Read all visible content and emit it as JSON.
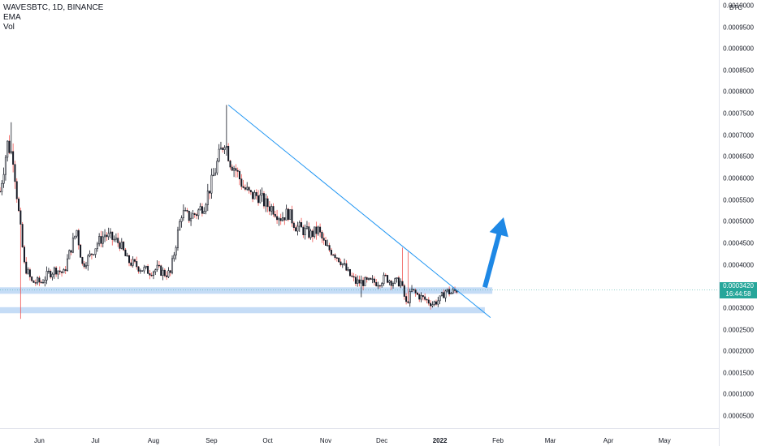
{
  "legend": {
    "symbol_line": "WAVESBTC, 1D, BINANCE",
    "ema_label": "EMA",
    "vol_label": "Vol"
  },
  "currency_label": "BTC",
  "price_label": {
    "price": "0.0003420",
    "countdown": "16:44:58"
  },
  "colors": {
    "up": "#26a69a",
    "down": "#ef5350",
    "candle_body": "#131722",
    "trendline": "#2196f3",
    "zone": "#bbd6f5",
    "arrow": "#1e88e5",
    "price_label_bg": "#26a69a"
  },
  "chart_data": {
    "type": "candlestick",
    "title": "WAVESBTC, 1D, BINANCE",
    "ylim": [
      2.2e-05,
      0.001013
    ],
    "y_ticks": [
      "0.0010000",
      "0.0009500",
      "0.0009000",
      "0.0008500",
      "0.0008000",
      "0.0007500",
      "0.0007000",
      "0.0006500",
      "0.0006000",
      "0.0005500",
      "0.0005000",
      "0.0004500",
      "0.0004000",
      "0.0003420",
      "0.0003000",
      "0.0002500",
      "0.0002000",
      "0.0001500",
      "0.0001000",
      "0.0000500"
    ],
    "y_tick_values": [
      0.001,
      0.00095,
      0.0009,
      0.00085,
      0.0008,
      0.00075,
      0.0007,
      0.00065,
      0.0006,
      0.00055,
      0.0005,
      0.00045,
      0.0004,
      0.000342,
      0.0003,
      0.00025,
      0.0002,
      0.00015,
      0.0001,
      5e-05
    ],
    "x_ticks": [
      {
        "label": "Jun",
        "date": "2021-06-01"
      },
      {
        "label": "Jul",
        "date": "2021-07-01"
      },
      {
        "label": "Aug",
        "date": "2021-08-01"
      },
      {
        "label": "Sep",
        "date": "2021-09-01"
      },
      {
        "label": "Oct",
        "date": "2021-10-01"
      },
      {
        "label": "Nov",
        "date": "2021-11-01"
      },
      {
        "label": "Dec",
        "date": "2021-12-01"
      },
      {
        "label": "2022",
        "date": "2022-01-01",
        "bold": true
      },
      {
        "label": "Feb",
        "date": "2022-02-01"
      },
      {
        "label": "Mar",
        "date": "2022-03-01"
      },
      {
        "label": "Apr",
        "date": "2022-04-01"
      },
      {
        "label": "May",
        "date": "2022-05-01"
      }
    ],
    "x_range": [
      "2021-05-11",
      "2022-05-30"
    ],
    "price_path": [
      [
        "2021-05-11",
        0.00057
      ],
      [
        "2021-05-15",
        0.00068
      ],
      [
        "2021-05-18",
        0.00065
      ],
      [
        "2021-05-21",
        0.00052
      ],
      [
        "2021-05-24",
        0.0004
      ],
      [
        "2021-05-28",
        0.00036
      ],
      [
        "2021-06-02",
        0.00036
      ],
      [
        "2021-06-06",
        0.00038
      ],
      [
        "2021-06-10",
        0.00039
      ],
      [
        "2021-06-14",
        0.00038
      ],
      [
        "2021-06-18",
        0.00044
      ],
      [
        "2021-06-21",
        0.00048
      ],
      [
        "2021-06-24",
        0.0004
      ],
      [
        "2021-06-28",
        0.00042
      ],
      [
        "2021-07-02",
        0.00045
      ],
      [
        "2021-07-06",
        0.00047
      ],
      [
        "2021-07-10",
        0.00046
      ],
      [
        "2021-07-14",
        0.00045
      ],
      [
        "2021-07-18",
        0.00041
      ],
      [
        "2021-07-22",
        0.0004
      ],
      [
        "2021-07-26",
        0.00039
      ],
      [
        "2021-07-30",
        0.000385
      ],
      [
        "2021-08-03",
        0.00039
      ],
      [
        "2021-08-07",
        0.00038
      ],
      [
        "2021-08-10",
        0.00038
      ],
      [
        "2021-08-13",
        0.00045
      ],
      [
        "2021-08-16",
        0.00052
      ],
      [
        "2021-08-20",
        0.00051
      ],
      [
        "2021-08-24",
        0.00052
      ],
      [
        "2021-08-28",
        0.00054
      ],
      [
        "2021-09-01",
        0.00059
      ],
      [
        "2021-09-05",
        0.00065
      ],
      [
        "2021-09-08",
        0.00069
      ],
      [
        "2021-09-11",
        0.00064
      ],
      [
        "2021-09-14",
        0.00062
      ],
      [
        "2021-09-18",
        0.00058
      ],
      [
        "2021-09-22",
        0.00056
      ],
      [
        "2021-09-26",
        0.00056
      ],
      [
        "2021-09-30",
        0.00054
      ],
      [
        "2021-10-04",
        0.00053
      ],
      [
        "2021-10-08",
        0.00051
      ],
      [
        "2021-10-12",
        0.00052
      ],
      [
        "2021-10-16",
        0.00049
      ],
      [
        "2021-10-20",
        0.00048
      ],
      [
        "2021-10-24",
        0.00047
      ],
      [
        "2021-10-28",
        0.00048
      ],
      [
        "2021-11-01",
        0.00044
      ],
      [
        "2021-11-05",
        0.00043
      ],
      [
        "2021-11-09",
        0.00041
      ],
      [
        "2021-11-13",
        0.00038
      ],
      [
        "2021-11-17",
        0.00036
      ],
      [
        "2021-11-21",
        0.00036
      ],
      [
        "2021-11-25",
        0.00036
      ],
      [
        "2021-11-29",
        0.00036
      ],
      [
        "2021-12-03",
        0.00037
      ],
      [
        "2021-12-07",
        0.00036
      ],
      [
        "2021-12-11",
        0.00036
      ],
      [
        "2021-12-14",
        0.00031
      ],
      [
        "2021-12-17",
        0.00034
      ],
      [
        "2021-12-20",
        0.00033
      ],
      [
        "2021-12-24",
        0.00032
      ],
      [
        "2021-12-28",
        0.00031
      ],
      [
        "2022-01-01",
        0.00032
      ],
      [
        "2022-01-04",
        0.00034
      ],
      [
        "2022-01-07",
        0.000335
      ],
      [
        "2022-01-10",
        0.000342
      ]
    ],
    "wick_spikes": [
      {
        "date": "2021-05-17",
        "high": 0.00073
      },
      {
        "date": "2021-05-22",
        "low": 0.000275
      },
      {
        "date": "2021-09-09",
        "high": 0.00077
      },
      {
        "date": "2021-11-20",
        "low": 0.000325
      },
      {
        "date": "2021-12-12",
        "high": 0.00044
      },
      {
        "date": "2021-12-15",
        "high": 0.00043
      }
    ],
    "trendline": [
      [
        "2021-09-10",
        0.00077
      ],
      [
        "2022-01-28",
        0.000278
      ]
    ],
    "zones": [
      {
        "from": "2021-05-11",
        "to": "2022-01-29",
        "low": 0.000333,
        "high": 0.000348
      },
      {
        "from": "2021-05-11",
        "to": "2022-01-25",
        "low": 0.000288,
        "high": 0.000302
      }
    ],
    "arrow": {
      "from": [
        "2022-01-25",
        0.000348
      ],
      "to": [
        "2022-02-04",
        0.00051
      ]
    }
  }
}
